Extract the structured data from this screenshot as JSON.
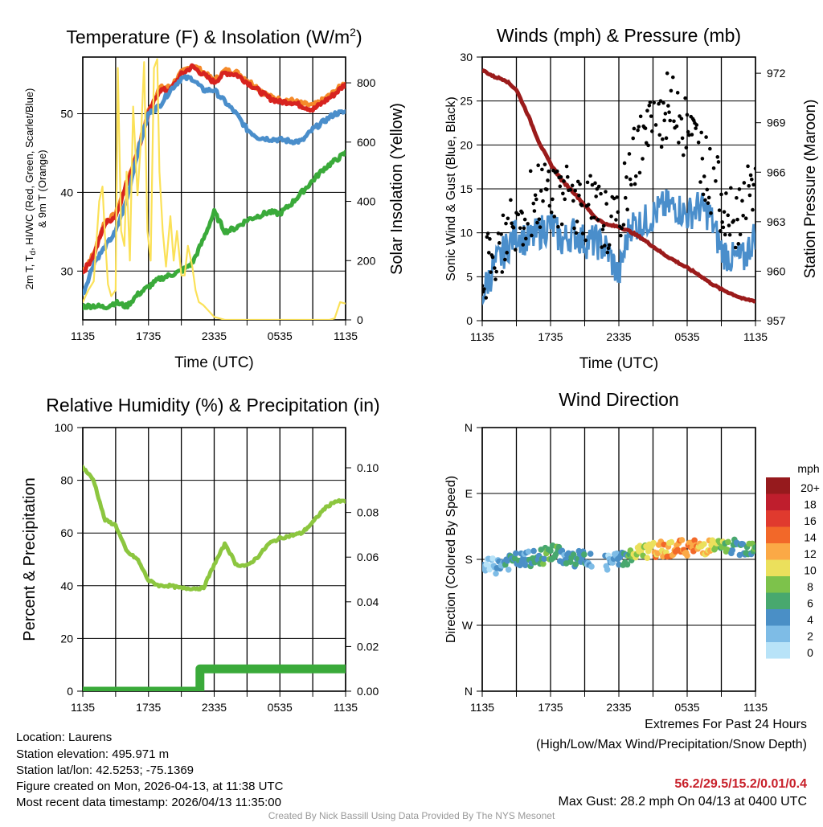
{
  "chart_data": [
    {
      "type": "line",
      "title": "Temperature (F) & Insolation (W/m",
      "title_sup": "2",
      "title_end": ")",
      "xlabel": "Time (UTC)",
      "ylabel": "2m T, T",
      "ylabel_sub": "d",
      "ylabel_rest": ", HI/WC (Red, Green, Scarlet/Blue)",
      "ylabel2": "& 9m T (Orange)",
      "y2label": "Solar Insolation (Yellow)",
      "xticks": [
        "1135",
        "1735",
        "2335",
        "0535",
        "1135"
      ],
      "ylim": [
        23.8,
        57.2
      ],
      "yticks": [
        "30",
        "40",
        "50"
      ],
      "y2lim": [
        0,
        887
      ],
      "y2ticks": [
        "0",
        "200",
        "400",
        "600",
        "800"
      ],
      "x_hours": [
        0,
        1,
        2,
        3,
        4,
        5,
        6,
        7,
        8,
        9,
        10,
        11,
        12,
        13,
        14,
        15,
        16,
        17,
        18,
        19,
        20,
        21,
        22,
        23,
        24
      ],
      "series": [
        {
          "name": "9m T",
          "color": "#f58a2a",
          "axis": "left",
          "values": [
            30,
            32.2,
            36.3,
            37.2,
            41.2,
            45.2,
            50.3,
            53.3,
            53.4,
            55.2,
            56.2,
            55.3,
            54.2,
            55.5,
            55.3,
            54.3,
            53.3,
            52.2,
            51.8,
            51.7,
            51.3,
            51,
            51.8,
            52.8,
            54
          ]
        },
        {
          "name": "2m T",
          "color": "#d7231f",
          "axis": "left",
          "values": [
            29.8,
            32,
            36,
            37,
            41,
            45,
            50,
            53,
            53,
            55,
            56,
            55,
            54,
            55.2,
            55,
            54,
            53,
            52,
            51.5,
            51.5,
            51,
            50.5,
            51.5,
            52.5,
            53.8
          ]
        },
        {
          "name": "HI/WC",
          "color": "#4a8ecb",
          "axis": "left",
          "values": [
            27,
            31,
            33,
            35,
            39,
            45,
            50,
            51,
            53,
            54.5,
            54.5,
            53,
            53,
            51.5,
            50,
            48,
            47,
            46.8,
            46.7,
            46.5,
            46.5,
            48,
            49,
            50,
            50.2
          ]
        },
        {
          "name": "Td",
          "color": "#3aaa3a",
          "axis": "left",
          "values": [
            25.5,
            25.6,
            25.4,
            26,
            25.5,
            27,
            28,
            29,
            29.5,
            30,
            31,
            34,
            37.5,
            35,
            35.5,
            36.5,
            37,
            37.5,
            37.3,
            38.5,
            40,
            41.5,
            43,
            44,
            45
          ]
        },
        {
          "name": "Solar",
          "color": "#fbe158",
          "axis": "right",
          "x_hours": [
            0,
            0.5,
            1,
            1.5,
            1.8,
            2,
            2.3,
            2.6,
            3,
            3.2,
            3.5,
            3.8,
            4,
            4.3,
            4.6,
            5,
            5.3,
            5.6,
            5.9,
            6.2,
            6.5,
            6.8,
            7,
            7.3,
            7.6,
            8,
            8.3,
            8.6,
            9,
            9.3,
            9.6,
            10,
            10.3,
            10.6,
            11,
            11.5,
            12,
            12.5,
            13,
            15,
            20,
            22.5,
            23,
            23.5,
            24
          ],
          "values": [
            60,
            100,
            130,
            400,
            450,
            300,
            120,
            80,
            100,
            850,
            300,
            250,
            500,
            200,
            720,
            420,
            600,
            870,
            300,
            200,
            850,
            880,
            500,
            300,
            180,
            350,
            200,
            300,
            150,
            150,
            250,
            180,
            100,
            60,
            50,
            30,
            10,
            5,
            0,
            0,
            0,
            0,
            5,
            60,
            55
          ]
        }
      ]
    },
    {
      "type": "line+scatter",
      "title": "Winds (mph) & Pressure (mb)",
      "xlabel": "Time (UTC)",
      "ylabel": "Sonic Wind & Gust (Blue, Black)",
      "y2label": "Station Pressure (Maroon)",
      "xticks": [
        "1135",
        "1735",
        "2335",
        "0535",
        "1135"
      ],
      "ylim": [
        0,
        30
      ],
      "yticks": [
        "0",
        "5",
        "10",
        "15",
        "20",
        "25",
        "30"
      ],
      "y2lim": [
        957,
        972.98
      ],
      "y2ticks": [
        "957",
        "960",
        "963",
        "966",
        "969",
        "972"
      ],
      "x_hours": [
        0,
        1,
        2,
        3,
        4,
        5,
        6,
        7,
        8,
        9,
        10,
        11,
        12,
        13,
        14,
        15,
        16,
        17,
        18,
        19,
        20,
        21,
        22,
        23,
        24
      ],
      "series": [
        {
          "name": "Sonic Wind",
          "color": "#4a8ecb",
          "values": [
            3,
            6,
            8,
            10,
            9,
            10,
            11,
            9,
            10,
            9,
            9,
            8,
            5,
            11,
            11,
            12,
            13,
            13,
            12,
            13,
            12,
            8,
            7,
            7,
            10
          ]
        },
        {
          "name": "Gust",
          "color": "#000000",
          "values": [
            5,
            7,
            10,
            12,
            13,
            14,
            15,
            14,
            14,
            13,
            12,
            11,
            10,
            18,
            20,
            22,
            24,
            25,
            21,
            20,
            16,
            14,
            12,
            13,
            15
          ]
        },
        {
          "name": "Pressure",
          "color": "#9b1b1b",
          "values": [
            972.2,
            971.8,
            971.6,
            971,
            969.5,
            967.8,
            966.5,
            965.5,
            964.8,
            964,
            963.2,
            962.8,
            962.7,
            962.4,
            962,
            961.5,
            961,
            960.6,
            960.2,
            959.8,
            959.3,
            958.9,
            958.6,
            958.3,
            958.2
          ]
        }
      ]
    },
    {
      "type": "line",
      "title": "Relative Humidity (%) & Precipitation (in)",
      "ylabel": "Percent & Precipitation",
      "xticks": [
        "1135",
        "1735",
        "2335",
        "0535",
        "1135"
      ],
      "ylim": [
        0,
        100
      ],
      "yticks": [
        "0",
        "20",
        "40",
        "60",
        "80",
        "100"
      ],
      "y2lim": [
        0,
        0.118
      ],
      "y2ticks": [
        "0.00",
        "0.02",
        "0.04",
        "0.06",
        "0.08",
        "0.10"
      ],
      "x_hours": [
        0,
        1,
        2,
        3,
        4,
        5,
        6,
        7,
        8,
        9,
        10,
        11,
        12,
        13,
        14,
        15,
        16,
        17,
        18,
        19,
        20,
        21,
        22,
        23,
        24
      ],
      "series": [
        {
          "name": "RH",
          "color": "#8cc63f",
          "values": [
            85,
            80,
            65,
            63,
            53,
            50,
            42,
            40,
            40,
            39,
            39,
            39,
            48,
            56,
            48,
            47.5,
            51,
            56,
            58,
            59,
            60,
            64,
            69,
            72,
            72
          ]
        },
        {
          "name": "Precipitation",
          "color": "#3aaa3a",
          "x_hours": [
            0,
            10.7,
            10.7,
            24
          ],
          "values": [
            0,
            0,
            0.01,
            0.01
          ]
        }
      ]
    },
    {
      "type": "scatter",
      "title": "Wind Direction",
      "ylabel": "Direction (Colored By Speed)",
      "xticks": [
        "1135",
        "1735",
        "2335",
        "0535",
        "1135"
      ],
      "yticks": [
        "N",
        "E",
        "S",
        "W",
        "N"
      ],
      "ylim": [
        0,
        360
      ],
      "x_hours": [
        0,
        1,
        2,
        3,
        4,
        5,
        6,
        7,
        8,
        9,
        10,
        11,
        12,
        13,
        14,
        15,
        16,
        17,
        18,
        19,
        20,
        21,
        22,
        23,
        24
      ],
      "direction": [
        172,
        170,
        175,
        178,
        180,
        182,
        190,
        185,
        180,
        182,
        176,
        175,
        180,
        184,
        190,
        192,
        194,
        196,
        196,
        196,
        198,
        196,
        196,
        196,
        198
      ],
      "speed": [
        2,
        3,
        5,
        6,
        5,
        6,
        9,
        5,
        6,
        5,
        4,
        3,
        4,
        9,
        11,
        12,
        13,
        14,
        14,
        13,
        12,
        9,
        7,
        6,
        8
      ],
      "legend": {
        "title": "mph",
        "labels": [
          "20+",
          "18",
          "16",
          "14",
          "12",
          "10",
          "8",
          "6",
          "4",
          "2",
          "0"
        ],
        "colors": [
          "#961a1d",
          "#bf1e2d",
          "#e03a2e",
          "#f26829",
          "#fba946",
          "#ebe05c",
          "#7dc24b",
          "#48a86e",
          "#4a8fc6",
          "#7ebce6",
          "#b8e3f8"
        ]
      }
    }
  ],
  "info": {
    "location": "Location: Laurens",
    "elevation": "Station elevation: 495.971 m",
    "latlon": "Station lat/lon: 42.5253; -75.1369",
    "created": "Figure created on Mon, 2026-04-13, at 11:38 UTC",
    "recent": "Most recent data timestamp: 2026/04/13 11:35:00"
  },
  "extremes": {
    "title": "Extremes For Past 24 Hours",
    "subtitle": "(High/Low/Max Wind/Precipitation/Snow Depth)",
    "values": "56.2/29.5/15.2/0.01/0.4",
    "gust": "Max Gust: 28.2 mph On 04/13 at 0400 UTC"
  },
  "credit": "Created By Nick Bassill Using Data Provided By The NYS Mesonet"
}
